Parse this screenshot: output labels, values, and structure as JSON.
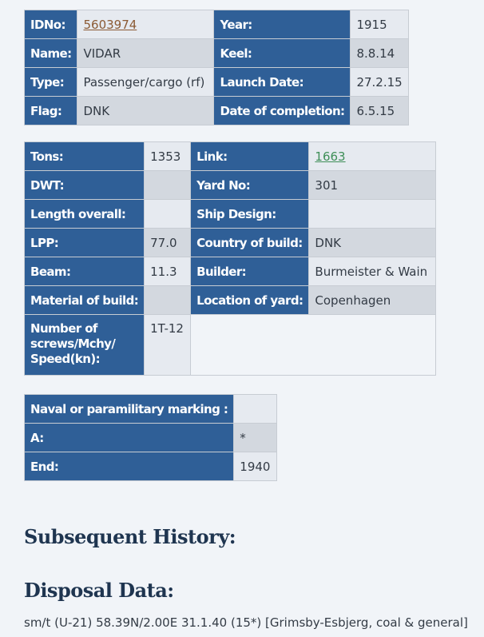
{
  "general": {
    "idno_label": "IDNo:",
    "idno_value": "5603974",
    "year_label": "Year:",
    "year_value": "1915",
    "name_label": "Name:",
    "name_value": "VIDAR",
    "keel_label": "Keel:",
    "keel_value": "8.8.14",
    "type_label": "Type:",
    "type_value": "Passenger/cargo (rf)",
    "launch_label": "Launch Date:",
    "launch_value": "27.2.15",
    "flag_label": "Flag:",
    "flag_value": "DNK",
    "completion_label": "Date of completion:",
    "completion_value": "6.5.15"
  },
  "specs": {
    "tons_label": "Tons:",
    "tons_value": "1353",
    "link_label": "Link:",
    "link_value": "1663",
    "dwt_label": "DWT:",
    "dwt_value": "",
    "yardno_label": "Yard No:",
    "yardno_value": "301",
    "length_label": "Length overall:",
    "length_value": "",
    "design_label": "Ship Design:",
    "design_value": "",
    "lpp_label": "LPP:",
    "lpp_value": "77.0",
    "country_label": "Country of build:",
    "country_value": "DNK",
    "beam_label": "Beam:",
    "beam_value": "11.3",
    "builder_label": "Builder:",
    "builder_value": "Burmeister & Wain",
    "material_label": "Material of build:",
    "material_value": "",
    "location_label": "Location of yard:",
    "location_value": "Copenhagen",
    "screws_label": "Number of screws/Mchy/ Speed(kn):",
    "screws_value": "1T-12"
  },
  "naval": {
    "marking_label": "Naval or paramilitary marking :",
    "marking_value": "",
    "a_label": "A:",
    "a_value": "*",
    "end_label": "End:",
    "end_value": "1940"
  },
  "sections": {
    "history_heading": "Subsequent History:",
    "disposal_heading": "Disposal Data:",
    "disposal_text": "sm/t (U-21) 58.39N/2.00E 31.1.40 (15*) [Grimsby-Esbjerg, coal & general]"
  }
}
